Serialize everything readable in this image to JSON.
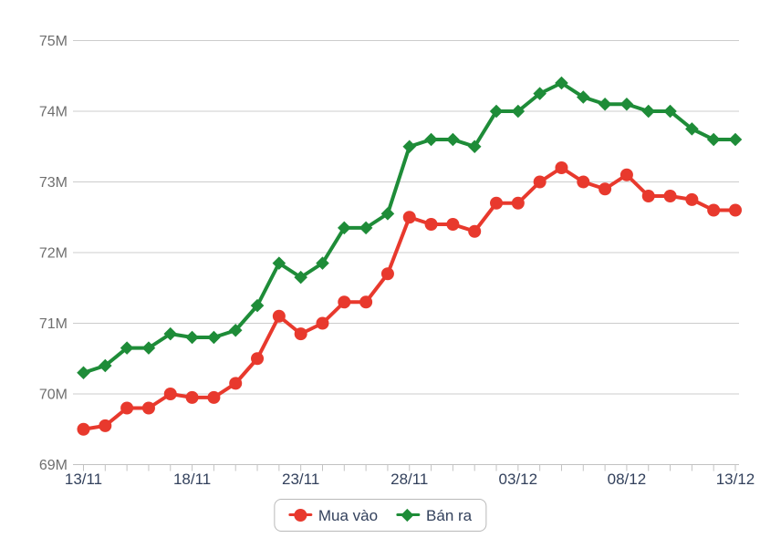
{
  "chart_data": {
    "type": "line",
    "title": "",
    "x": [
      "13/11",
      "14/11",
      "15/11",
      "16/11",
      "17/11",
      "18/11",
      "19/11",
      "20/11",
      "21/11",
      "22/11",
      "23/11",
      "24/11",
      "25/11",
      "26/11",
      "27/11",
      "28/11",
      "29/11",
      "30/11",
      "01/12",
      "02/12",
      "03/12",
      "04/12",
      "05/12",
      "06/12",
      "07/12",
      "08/12",
      "09/12",
      "10/12",
      "11/12",
      "12/12",
      "13/12"
    ],
    "x_tick_labels": [
      "13/11",
      "18/11",
      "23/11",
      "28/11",
      "03/12",
      "08/12",
      "13/12"
    ],
    "x_tick_every": 5,
    "y_tick_labels": [
      "69M",
      "70M",
      "71M",
      "72M",
      "73M",
      "74M",
      "75M"
    ],
    "ylim": [
      69,
      75
    ],
    "grid": "horizontal",
    "legend_position": "bottom-center",
    "series": [
      {
        "name": "Mua vào",
        "color": "#e8392d",
        "marker": "circle",
        "values": [
          69.5,
          69.55,
          69.8,
          69.8,
          70.0,
          69.95,
          69.95,
          70.15,
          70.5,
          71.1,
          70.85,
          71.0,
          71.3,
          71.3,
          71.7,
          72.5,
          72.4,
          72.4,
          72.3,
          72.7,
          72.7,
          73.0,
          73.2,
          73.0,
          72.9,
          73.1,
          72.8,
          72.8,
          72.75,
          72.6,
          72.6
        ]
      },
      {
        "name": "Bán ra",
        "color": "#1e8c38",
        "marker": "diamond",
        "values": [
          70.3,
          70.4,
          70.65,
          70.65,
          70.85,
          70.8,
          70.8,
          70.9,
          71.25,
          71.85,
          71.65,
          71.85,
          72.35,
          72.35,
          72.55,
          73.5,
          73.6,
          73.6,
          73.5,
          74.0,
          74.0,
          74.25,
          74.4,
          74.2,
          74.1,
          74.1,
          74.0,
          74.0,
          73.75,
          73.6,
          73.6
        ]
      }
    ]
  },
  "colors": {
    "grid": "#cccccc",
    "axis": "#c2c2c2",
    "y_label": "#6f6f6f",
    "x_label": "#33415c",
    "legend_text": "#33415c",
    "legend_border": "#b9b9b9",
    "background": "#ffffff"
  }
}
